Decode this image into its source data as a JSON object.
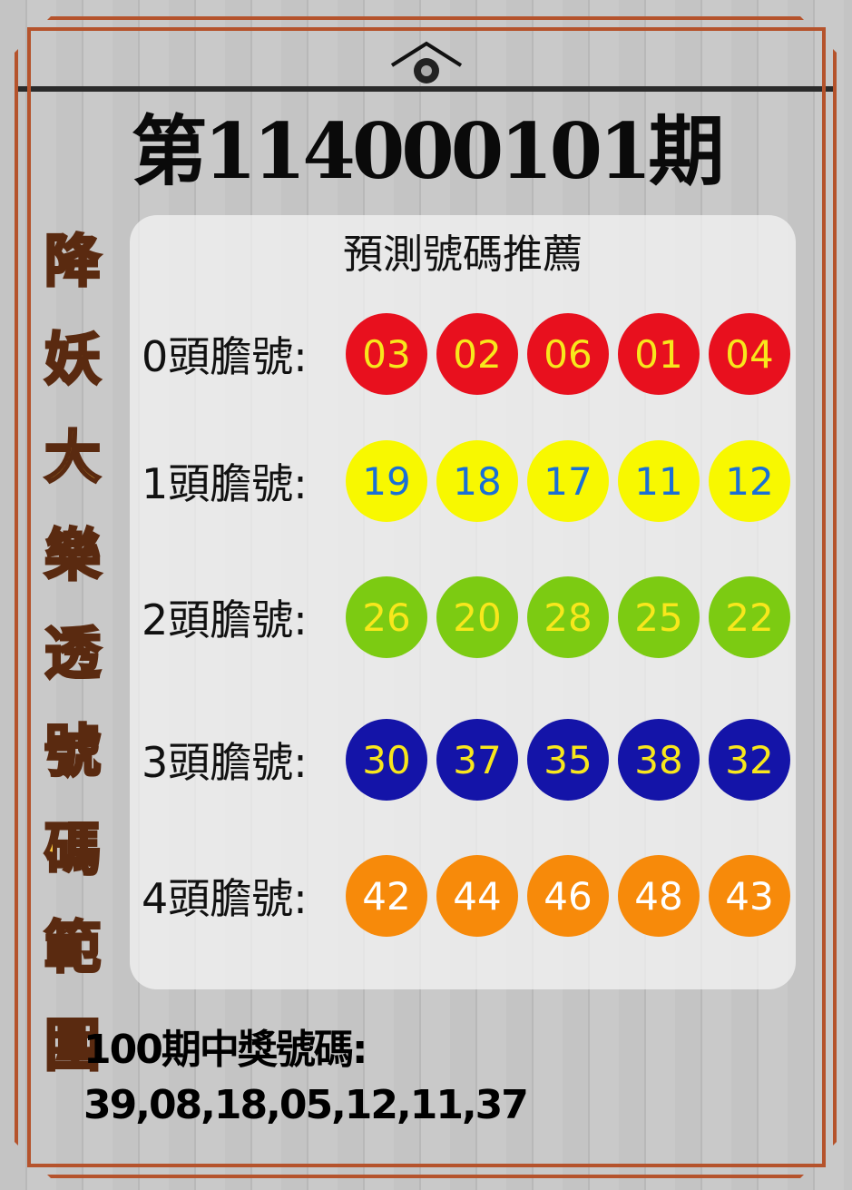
{
  "title": "第114000101期",
  "subtitle": "預測號碼推薦",
  "side_title": [
    "降",
    "妖",
    "大",
    "樂",
    "透",
    "號",
    "碼",
    "範",
    "圍"
  ],
  "rows": [
    {
      "label": "0頭膽號:",
      "numbers": [
        "03",
        "02",
        "06",
        "01",
        "04"
      ],
      "ball_color": "#e8101e",
      "text_color": "#f8e71c"
    },
    {
      "label": "1頭膽號:",
      "numbers": [
        "19",
        "18",
        "17",
        "11",
        "12"
      ],
      "ball_color": "#f8f800",
      "text_color": "#1a6fd6"
    },
    {
      "label": "2頭膽號:",
      "numbers": [
        "26",
        "20",
        "28",
        "25",
        "22"
      ],
      "ball_color": "#7ccb12",
      "text_color": "#f8e71c"
    },
    {
      "label": "3頭膽號:",
      "numbers": [
        "30",
        "37",
        "35",
        "38",
        "32"
      ],
      "ball_color": "#1414a8",
      "text_color": "#f8e71c"
    },
    {
      "label": "4頭膽號:",
      "numbers": [
        "42",
        "44",
        "46",
        "48",
        "43"
      ],
      "ball_color": "#f78a0a",
      "text_color": "#ffffff"
    }
  ],
  "last_draw": {
    "label": "100期中獎號碼:",
    "numbers": "39,08,18,05,12,11,37"
  },
  "colors": {
    "frame": "#b5532c",
    "side_text": "#f9c53d"
  }
}
